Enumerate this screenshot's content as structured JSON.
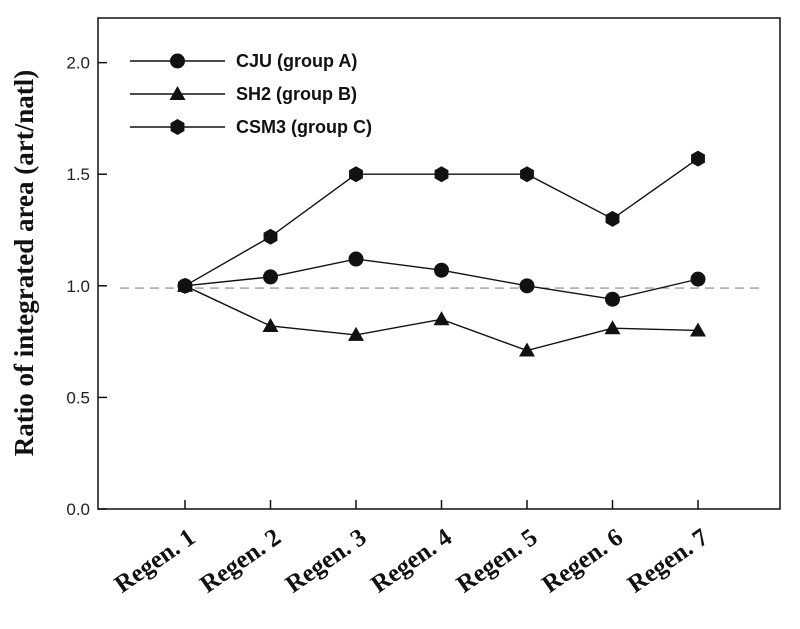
{
  "chart_data": {
    "type": "line",
    "categories": [
      "Regen. 1",
      "Regen. 2",
      "Regen. 3",
      "Regen. 4",
      "Regen. 5",
      "Regen. 6",
      "Regen. 7"
    ],
    "series": [
      {
        "name": "CJU (group A)",
        "marker": "circle",
        "values": [
          1.0,
          1.04,
          1.12,
          1.07,
          1.0,
          0.94,
          1.03
        ]
      },
      {
        "name": "SH2 (group B)",
        "marker": "triangle",
        "values": [
          1.0,
          0.82,
          0.78,
          0.85,
          0.71,
          0.81,
          0.8
        ]
      },
      {
        "name": "CSM3 (group C)",
        "marker": "hexagon",
        "values": [
          1.0,
          1.22,
          1.5,
          1.5,
          1.5,
          1.3,
          1.57
        ]
      }
    ],
    "ylabel": "Ratio of integrated area (art/natl)",
    "xlabel": "",
    "ylim": [
      0.0,
      2.2
    ],
    "yticks": [
      0.0,
      0.5,
      1.0,
      1.5,
      2.0
    ],
    "ytick_labels": [
      "0.0",
      "0.5",
      "1.0",
      "1.5",
      "2.0"
    ],
    "reference_line": {
      "y": 0.99,
      "style": "dashed"
    },
    "legend_position": "top-left",
    "grid": false,
    "colors": {
      "line": "#111111",
      "reference": "#888888"
    }
  }
}
